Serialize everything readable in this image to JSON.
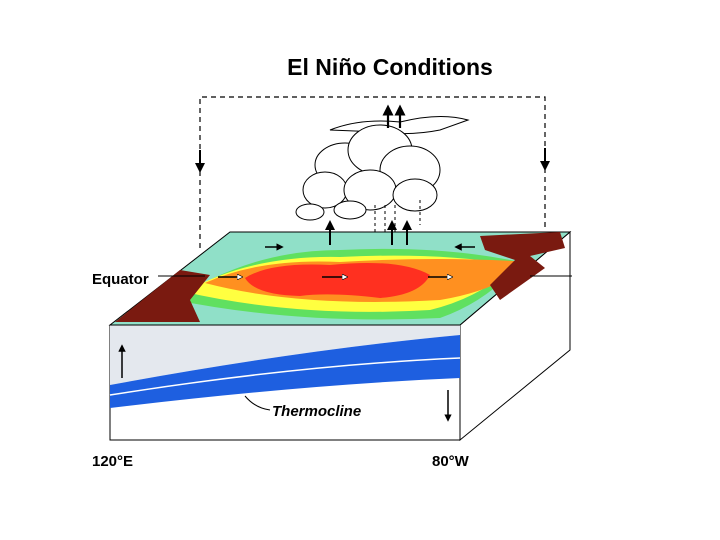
{
  "title": "El Niño Conditions",
  "labels": {
    "equator": "Equator",
    "thermocline": "Thermocline",
    "west": "120°E",
    "east": "80°W"
  }
}
